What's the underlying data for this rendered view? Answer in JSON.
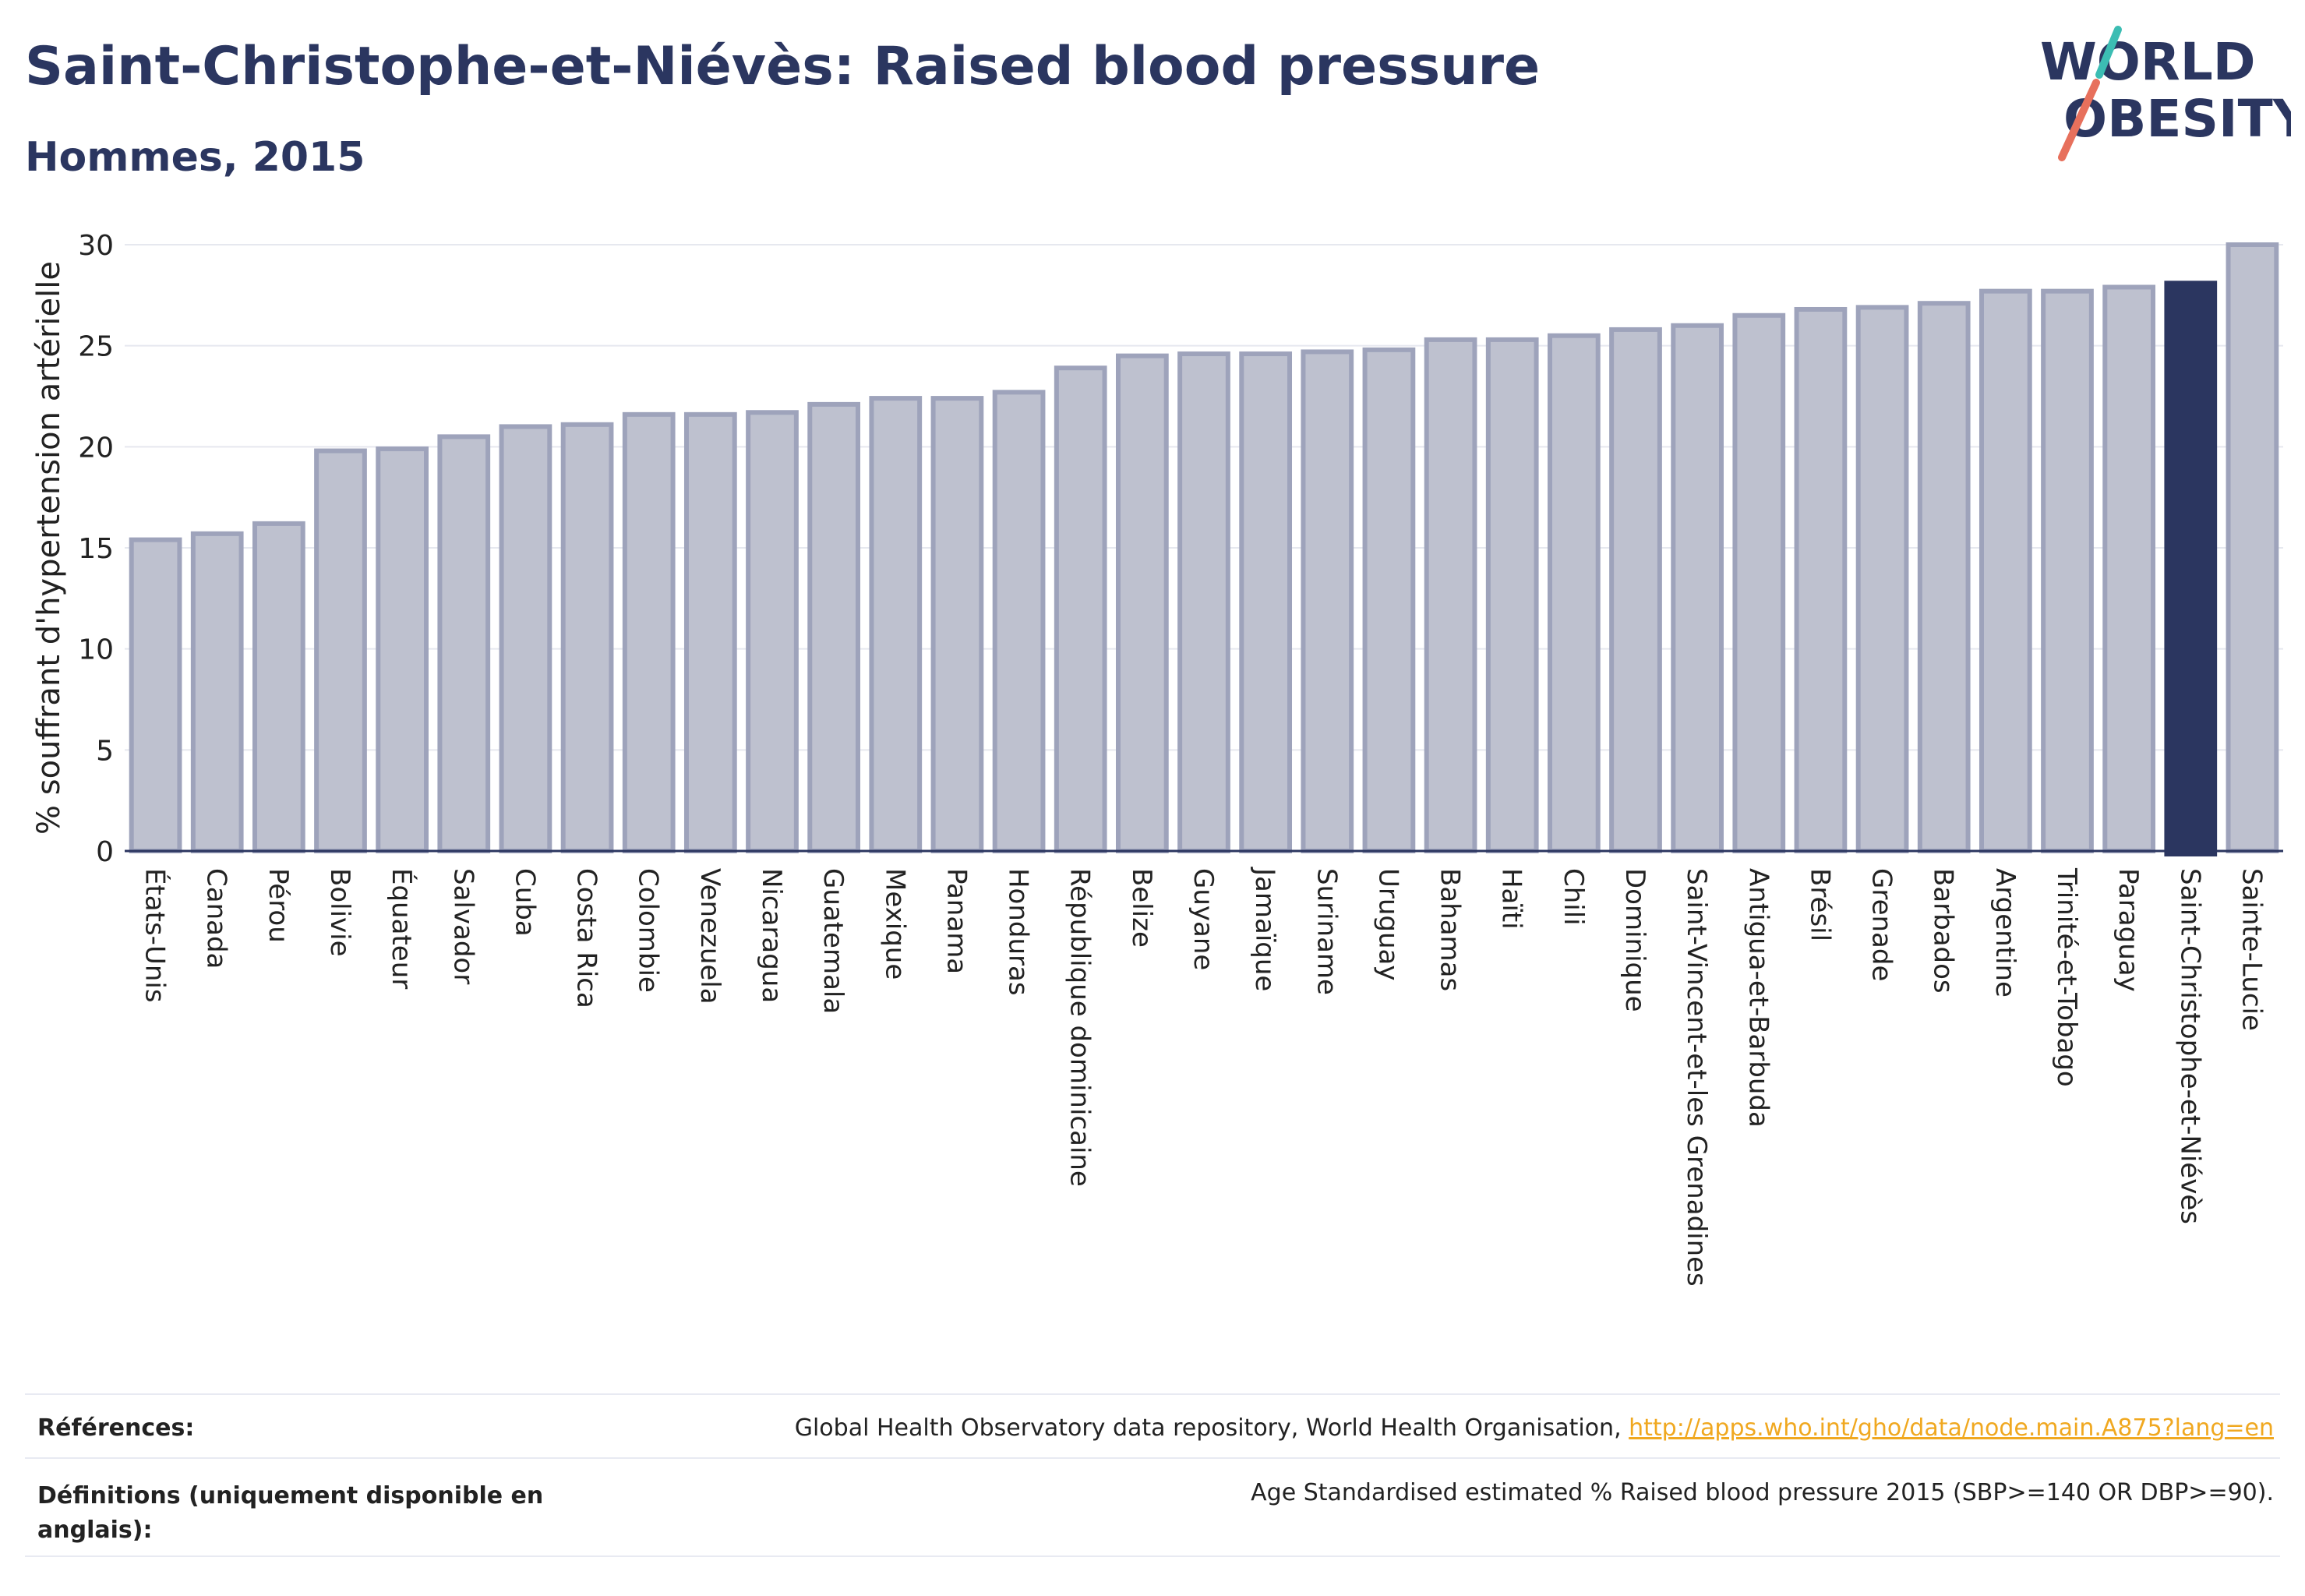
{
  "header": {
    "title": "Saint-Christophe-et-Niévès: Raised blood pressure",
    "subtitle": "Hommes, 2015"
  },
  "logo": {
    "line1": "WORLD",
    "line2": "OBESITY"
  },
  "colors": {
    "highlight": "#2b3660",
    "bar_fill": "#bec1cf",
    "bar_stroke": "#9ea3bb",
    "link": "#f0a820",
    "logo_teal": "#3cbdb3",
    "logo_coral": "#e7705c"
  },
  "chart_data": {
    "type": "bar",
    "ylabel": "% souffrant d'hypertension artérielle",
    "xlabel": "",
    "ylim": [
      0,
      30
    ],
    "yticks": [
      0,
      5,
      10,
      15,
      20,
      25,
      30
    ],
    "grid": true,
    "highlight_category": "Saint-Christophe-et-Niévès",
    "categories": [
      "États-Unis",
      "Canada",
      "Pérou",
      "Bolivie",
      "Équateur",
      "Salvador",
      "Cuba",
      "Costa Rica",
      "Colombie",
      "Venezuela",
      "Nicaragua",
      "Guatemala",
      "Mexique",
      "Panama",
      "Honduras",
      "République dominicaine",
      "Belize",
      "Guyane",
      "Jamaïque",
      "Suriname",
      "Uruguay",
      "Bahamas",
      "Haïti",
      "Chili",
      "Dominique",
      "Saint-Vincent-et-les Grenadines",
      "Antigua-et-Barbuda",
      "Brésil",
      "Grenade",
      "Barbados",
      "Argentine",
      "Trinité-et-Tobago",
      "Paraguay",
      "Saint-Christophe-et-Niévès",
      "Sainte-Lucie"
    ],
    "values": [
      15.4,
      15.7,
      16.2,
      19.8,
      19.9,
      20.5,
      21.0,
      21.1,
      21.6,
      21.6,
      21.7,
      22.1,
      22.4,
      22.4,
      22.7,
      23.9,
      24.5,
      24.6,
      24.6,
      24.7,
      24.8,
      25.3,
      25.3,
      25.5,
      25.8,
      26.0,
      26.5,
      26.8,
      26.9,
      27.1,
      27.7,
      27.7,
      27.9,
      28.1,
      30.0
    ]
  },
  "footer": {
    "references_label": "Références:",
    "references_text": "Global Health Observatory data repository, World Health Organisation, ",
    "references_link": "http://apps.who.int/gho/data/node.main.A875?lang=en",
    "definitions_label": "Définitions (uniquement disponible en anglais):",
    "definitions_text": "Age Standardised estimated % Raised blood pressure 2015 (SBP>=140 OR DBP>=90)."
  }
}
